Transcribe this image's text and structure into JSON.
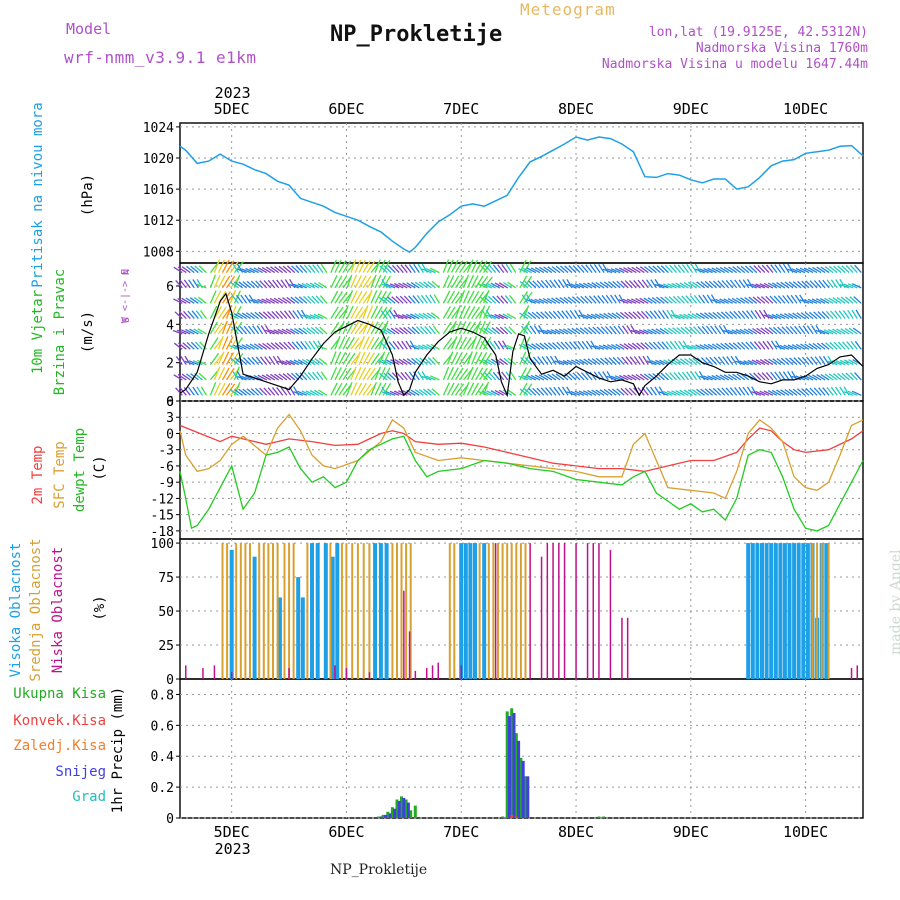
{
  "header": {
    "model_label": "Model",
    "model_name": "wrf-nmm_v3.9.1 e1km",
    "title": "NP_Prokletije",
    "product": "Meteogram",
    "lonlat": "lon,lat (19.9125E, 42.5312N)",
    "elevation": "Nadmorska Visina 1760m",
    "elevation_model": "Nadmorska Visina u modelu 1647.44m"
  },
  "footer": {
    "station_name": "NP_Prokletije",
    "watermark": "made by Angel"
  },
  "time_axis": {
    "year": "2023",
    "day_labels": [
      "5DEC",
      "6DEC",
      "7DEC",
      "8DEC",
      "9DEC",
      "10DEC"
    ],
    "day_values": [
      5,
      6,
      7,
      8,
      9,
      10
    ],
    "range": [
      4.55,
      10.5
    ]
  },
  "colors": {
    "pressure": "#1ea0e6",
    "wind_speed": "#000000",
    "wind_gust": "#ff3030",
    "t2m": "#f04040",
    "tsfc": "#d8a030",
    "dewpoint": "#22cc22",
    "cloud_high": "#1ea0e6",
    "cloud_mid": "#d8a030",
    "cloud_low": "#c0108c",
    "precip_total": "#22aa22",
    "precip_conv": "#f04040",
    "precip_frozen": "#f08030",
    "precip_snow": "#4040e0",
    "precip_graupel": "#20c0c0"
  },
  "panel_labels": {
    "pressure": [
      "Pritisak na nivou mora",
      "(hPa)"
    ],
    "wind": [
      "10m Vjetar",
      "Brzina i Pravac",
      "(m/s)"
    ],
    "wind_compass": [
      "N",
      "W  <-|->  E",
      "S"
    ],
    "temp": [
      "2m Temp",
      "SFC Temp",
      "dewpt Temp",
      "(C)"
    ],
    "cloud": [
      "Visoka Oblacnost",
      "Srednja Oblacnost",
      "Niska Oblacnost",
      "(%)"
    ],
    "precip": [
      "Ukupna Kisa",
      "Konvek.Kisa",
      "Zaledj.Kisa",
      "Snijeg",
      "Grad",
      "1hr Precip (mm)"
    ]
  },
  "chart_data": [
    {
      "type": "line",
      "name": "pressure",
      "ylabel": "Pritisak na nivou mora (hPa)",
      "ylim": [
        1006.5,
        1024.5
      ],
      "yticks": [
        1008,
        1012,
        1016,
        1020,
        1024
      ],
      "grid": true,
      "series": [
        {
          "name": "Pritisak na nivou mora",
          "x": [
            4.55,
            4.6,
            4.7,
            4.8,
            4.9,
            5.0,
            5.1,
            5.2,
            5.3,
            5.4,
            5.5,
            5.6,
            5.7,
            5.8,
            5.9,
            6.0,
            6.1,
            6.2,
            6.3,
            6.4,
            6.5,
            6.55,
            6.6,
            6.7,
            6.8,
            6.9,
            7.0,
            7.1,
            7.2,
            7.3,
            7.4,
            7.5,
            7.6,
            7.7,
            7.8,
            7.9,
            8.0,
            8.1,
            8.2,
            8.3,
            8.4,
            8.5,
            8.6,
            8.7,
            8.8,
            8.9,
            9.0,
            9.1,
            9.2,
            9.3,
            9.4,
            9.5,
            9.6,
            9.7,
            9.8,
            9.9,
            10.0,
            10.1,
            10.2,
            10.3,
            10.4,
            10.5
          ],
          "values": [
            1021.5,
            1021.0,
            1019.3,
            1019.6,
            1020.5,
            1019.6,
            1019.2,
            1018.5,
            1018.0,
            1017.0,
            1016.5,
            1014.8,
            1014.3,
            1013.8,
            1013.0,
            1012.5,
            1012.0,
            1011.2,
            1010.5,
            1009.3,
            1008.3,
            1007.9,
            1008.5,
            1010.3,
            1011.8,
            1012.7,
            1013.8,
            1014.1,
            1013.8,
            1014.5,
            1015.2,
            1017.5,
            1019.5,
            1020.2,
            1021.0,
            1021.8,
            1022.7,
            1022.3,
            1022.7,
            1022.5,
            1021.8,
            1020.8,
            1017.6,
            1017.5,
            1018.0,
            1017.8,
            1017.2,
            1016.8,
            1017.3,
            1017.3,
            1016.0,
            1016.3,
            1017.5,
            1019.0,
            1019.6,
            1019.8,
            1020.6,
            1020.8,
            1021.0,
            1021.5,
            1021.6,
            1020.3
          ]
        }
      ]
    },
    {
      "type": "line",
      "name": "wind",
      "ylabel": "10m Vjetar Brzina i Pravac (m/s)",
      "ylim": [
        0,
        7.2
      ],
      "yticks": [
        0,
        2,
        4,
        6
      ],
      "grid": true,
      "series": [
        {
          "name": "10m wind speed",
          "x": [
            4.55,
            4.6,
            4.7,
            4.8,
            4.9,
            4.95,
            5.0,
            5.05,
            5.1,
            5.2,
            5.3,
            5.4,
            5.5,
            5.6,
            5.7,
            5.8,
            5.9,
            6.0,
            6.1,
            6.2,
            6.3,
            6.4,
            6.45,
            6.5,
            6.55,
            6.6,
            6.7,
            6.8,
            6.9,
            7.0,
            7.1,
            7.2,
            7.3,
            7.35,
            7.4,
            7.45,
            7.5,
            7.55,
            7.6,
            7.7,
            7.8,
            7.9,
            8.0,
            8.1,
            8.2,
            8.3,
            8.4,
            8.5,
            8.55,
            8.6,
            8.7,
            8.8,
            8.9,
            9.0,
            9.1,
            9.2,
            9.3,
            9.4,
            9.5,
            9.6,
            9.7,
            9.8,
            9.9,
            10.0,
            10.1,
            10.2,
            10.3,
            10.4,
            10.5
          ],
          "values": [
            0.4,
            0.6,
            1.5,
            3.5,
            5.2,
            5.6,
            4.6,
            3.0,
            1.4,
            1.2,
            1.0,
            0.8,
            0.6,
            1.3,
            2.2,
            3.0,
            3.6,
            3.9,
            4.2,
            4.0,
            3.7,
            2.4,
            1.0,
            0.3,
            0.6,
            1.5,
            2.4,
            3.1,
            3.6,
            3.8,
            3.6,
            3.3,
            2.4,
            1.0,
            0.3,
            2.6,
            3.5,
            3.4,
            2.2,
            1.4,
            1.6,
            1.3,
            1.8,
            1.5,
            1.2,
            1.0,
            1.1,
            0.9,
            0.3,
            0.8,
            1.3,
            1.9,
            2.4,
            2.4,
            2.0,
            1.8,
            1.5,
            1.5,
            1.3,
            1.0,
            0.9,
            1.1,
            1.1,
            1.3,
            1.7,
            1.9,
            2.3,
            2.4,
            1.8
          ]
        }
      ]
    },
    {
      "type": "line",
      "name": "temperature",
      "ylabel": "(C)",
      "ylim": [
        -19.5,
        6
      ],
      "yticks": [
        -18,
        -15,
        -12,
        -9,
        -6,
        -3,
        0,
        3,
        6
      ],
      "grid": true,
      "series": [
        {
          "name": "2m Temp",
          "x": [
            4.55,
            4.7,
            4.9,
            5.0,
            5.1,
            5.3,
            5.5,
            5.7,
            5.9,
            6.1,
            6.2,
            6.3,
            6.4,
            6.5,
            6.6,
            6.8,
            7.0,
            7.2,
            7.4,
            7.6,
            7.8,
            8.0,
            8.2,
            8.4,
            8.6,
            8.8,
            9.0,
            9.2,
            9.4,
            9.5,
            9.6,
            9.7,
            9.8,
            9.9,
            10.0,
            10.2,
            10.4,
            10.5
          ],
          "values": [
            1.5,
            0.2,
            -1.5,
            -0.5,
            -1.0,
            -2.0,
            -1.0,
            -1.5,
            -2.2,
            -2.0,
            -1.0,
            0.0,
            0.5,
            0.0,
            -1.5,
            -2.0,
            -1.8,
            -2.5,
            -3.5,
            -4.5,
            -5.5,
            -6.0,
            -6.5,
            -6.5,
            -7.0,
            -6.0,
            -5.0,
            -5.0,
            -3.5,
            -1.0,
            1.0,
            0.5,
            -1.5,
            -3.0,
            -3.5,
            -3.0,
            -1.0,
            0.5
          ]
        },
        {
          "name": "SFC Temp",
          "x": [
            4.55,
            4.6,
            4.7,
            4.8,
            4.9,
            5.0,
            5.1,
            5.3,
            5.4,
            5.5,
            5.6,
            5.7,
            5.8,
            5.9,
            6.1,
            6.3,
            6.4,
            6.5,
            6.6,
            6.8,
            7.0,
            7.2,
            7.4,
            7.6,
            7.8,
            8.0,
            8.2,
            8.4,
            8.5,
            8.6,
            8.8,
            9.0,
            9.2,
            9.3,
            9.4,
            9.5,
            9.6,
            9.7,
            9.8,
            9.9,
            10.0,
            10.1,
            10.2,
            10.3,
            10.4,
            10.5
          ],
          "values": [
            0.5,
            -4.0,
            -7.0,
            -6.5,
            -5.0,
            -2.0,
            -0.5,
            -4.0,
            1.0,
            3.5,
            0.5,
            -4.0,
            -6.0,
            -6.5,
            -5.0,
            -1.5,
            2.5,
            1.0,
            -3.5,
            -5.0,
            -4.5,
            -5.0,
            -5.5,
            -6.0,
            -6.5,
            -7.0,
            -8.0,
            -8.0,
            -2.0,
            0.0,
            -10.0,
            -10.5,
            -11.0,
            -12.0,
            -7.0,
            0.0,
            2.5,
            1.0,
            -1.5,
            -8.0,
            -10.0,
            -10.5,
            -9.0,
            -4.0,
            1.5,
            2.5
          ]
        },
        {
          "name": "dewpt Temp",
          "x": [
            4.55,
            4.6,
            4.65,
            4.7,
            4.8,
            4.9,
            5.0,
            5.1,
            5.2,
            5.3,
            5.4,
            5.5,
            5.6,
            5.7,
            5.8,
            5.9,
            6.0,
            6.1,
            6.2,
            6.3,
            6.4,
            6.5,
            6.6,
            6.7,
            6.8,
            7.0,
            7.2,
            7.4,
            7.6,
            7.8,
            8.0,
            8.2,
            8.4,
            8.5,
            8.6,
            8.7,
            8.8,
            8.9,
            9.0,
            9.1,
            9.2,
            9.3,
            9.4,
            9.5,
            9.6,
            9.7,
            9.8,
            9.9,
            10.0,
            10.1,
            10.2,
            10.3,
            10.4,
            10.5
          ],
          "values": [
            -7.0,
            -12.0,
            -17.5,
            -17.0,
            -14.0,
            -10.0,
            -6.0,
            -14.0,
            -11.0,
            -4.0,
            -3.5,
            -2.5,
            -6.5,
            -9.0,
            -8.0,
            -10.0,
            -9.0,
            -5.0,
            -3.0,
            -2.0,
            -1.0,
            -0.5,
            -5.0,
            -8.0,
            -7.0,
            -6.5,
            -5.0,
            -5.5,
            -6.5,
            -7.0,
            -8.5,
            -9.0,
            -9.5,
            -8.0,
            -7.0,
            -11.0,
            -12.5,
            -14.0,
            -13.0,
            -14.5,
            -14.0,
            -16.0,
            -12.0,
            -4.0,
            -3.0,
            -3.5,
            -8.0,
            -14.0,
            -17.5,
            -18.0,
            -17.0,
            -13.0,
            -9.0,
            -5.0
          ]
        }
      ]
    },
    {
      "type": "bar",
      "name": "cloud_cover",
      "ylabel": "(%)",
      "ylim": [
        0,
        103
      ],
      "yticks": [
        0,
        25,
        50,
        75,
        100
      ],
      "grid": true,
      "series": [
        {
          "name": "Visoka Oblacnost",
          "x": [
            5.0,
            5.2,
            5.42,
            5.58,
            5.62,
            5.7,
            5.75,
            5.82,
            5.88,
            5.92,
            6.25,
            6.3,
            6.35,
            7.0,
            7.04,
            7.08,
            7.12,
            7.2,
            9.5,
            9.54,
            9.58,
            9.62,
            9.66,
            9.7,
            9.74,
            9.78,
            9.82,
            9.86,
            9.9,
            9.94,
            9.98,
            10.02,
            10.06,
            10.1,
            10.14,
            10.18
          ],
          "values": [
            95,
            90,
            60,
            75,
            60,
            100,
            100,
            100,
            90,
            100,
            100,
            100,
            100,
            100,
            100,
            100,
            100,
            100,
            100,
            100,
            100,
            100,
            100,
            100,
            100,
            100,
            100,
            100,
            100,
            100,
            100,
            100,
            100,
            45,
            100,
            100
          ]
        },
        {
          "name": "Srednja Oblacnost",
          "x": [
            4.92,
            4.96,
            5.04,
            5.08,
            5.12,
            5.16,
            5.24,
            5.28,
            5.32,
            5.36,
            5.4,
            5.46,
            5.5,
            5.54,
            5.66,
            5.86,
            5.96,
            6.0,
            6.05,
            6.1,
            6.15,
            6.2,
            6.4,
            6.44,
            6.48,
            6.52,
            6.56,
            6.9,
            6.94,
            7.16,
            7.24,
            7.28,
            7.32,
            7.36,
            7.4,
            7.44,
            7.48,
            7.52,
            7.56,
            10.06,
            10.1,
            10.14,
            10.2
          ],
          "values": [
            100,
            100,
            100,
            100,
            100,
            100,
            100,
            100,
            100,
            100,
            100,
            100,
            100,
            100,
            100,
            100,
            100,
            100,
            100,
            100,
            100,
            100,
            100,
            100,
            100,
            100,
            100,
            100,
            100,
            100,
            100,
            100,
            100,
            100,
            100,
            100,
            100,
            100,
            100,
            100,
            100,
            100,
            100
          ]
        },
        {
          "name": "Niska Oblacnost",
          "x": [
            4.6,
            4.75,
            4.85,
            5.0,
            5.5,
            5.9,
            6.0,
            6.2,
            6.5,
            6.55,
            6.6,
            6.7,
            6.75,
            6.8,
            7.0,
            7.3,
            7.6,
            7.7,
            7.75,
            7.8,
            7.85,
            7.9,
            8.0,
            8.1,
            8.15,
            8.2,
            8.3,
            8.4,
            8.45,
            10.4,
            10.45
          ],
          "values": [
            10,
            8,
            10,
            5,
            8,
            10,
            8,
            5,
            65,
            35,
            6,
            8,
            10,
            12,
            10,
            100,
            100,
            90,
            100,
            100,
            100,
            100,
            100,
            100,
            100,
            100,
            95,
            45,
            45,
            8,
            10
          ]
        }
      ]
    },
    {
      "type": "bar",
      "name": "precipitation",
      "ylabel": "1hr Precip (mm)",
      "ylim": [
        0,
        0.9
      ],
      "yticks": [
        0,
        0.2,
        0.4,
        0.6,
        0.8
      ],
      "grid": true,
      "series": [
        {
          "name": "Ukupna Kisa",
          "x": [
            6.28,
            6.32,
            6.36,
            6.4,
            6.44,
            6.48,
            6.52,
            6.56,
            6.6,
            7.36,
            7.4,
            7.44,
            7.48,
            7.52,
            7.56,
            8.2,
            8.24
          ],
          "values": [
            0.01,
            0.02,
            0.04,
            0.07,
            0.12,
            0.14,
            0.12,
            0.05,
            0.08,
            0.01,
            0.69,
            0.71,
            0.55,
            0.39,
            0.27,
            0.01,
            0.01
          ]
        },
        {
          "name": "Snijeg",
          "x": [
            6.3,
            6.34,
            6.38,
            6.42,
            6.46,
            6.5,
            6.54,
            7.38,
            7.42,
            7.46,
            7.5,
            7.54,
            7.58
          ],
          "values": [
            0.01,
            0.02,
            0.03,
            0.06,
            0.11,
            0.13,
            0.1,
            0.0,
            0.66,
            0.68,
            0.5,
            0.37,
            0.27
          ]
        },
        {
          "name": "Konvek.Kisa",
          "x": [
            7.44,
            7.48
          ],
          "values": [
            0.02,
            0.01
          ]
        }
      ]
    }
  ]
}
